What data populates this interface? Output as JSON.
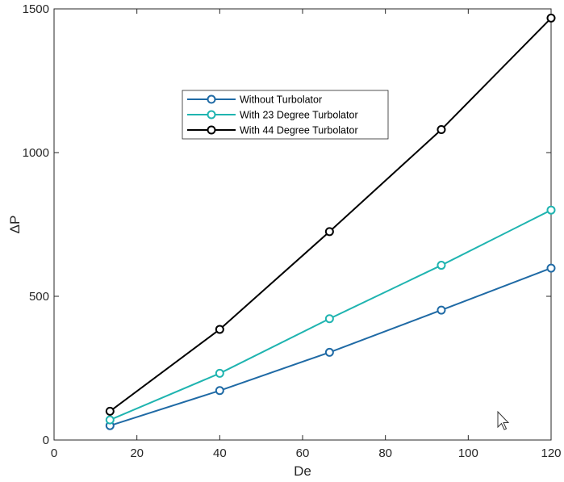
{
  "chart_data": {
    "type": "line",
    "xlabel": "De",
    "ylabel": "ΔP",
    "xlim": [
      0,
      120
    ],
    "ylim": [
      0,
      1500
    ],
    "xticks": [
      0,
      20,
      40,
      60,
      80,
      100,
      120
    ],
    "yticks": [
      0,
      500,
      1000,
      1500
    ],
    "grid": false,
    "legend_position": "upper-center",
    "series": [
      {
        "name": "Without Turbolator",
        "color": "#1f6aa5",
        "x": [
          13.5,
          40,
          66.5,
          93.5,
          120
        ],
        "y": [
          50,
          172,
          305,
          452,
          598
        ]
      },
      {
        "name": "With 23 Degree Turbolator",
        "color": "#1fb4b0",
        "x": [
          13.5,
          40,
          66.5,
          93.5,
          120
        ],
        "y": [
          70,
          232,
          422,
          608,
          800
        ]
      },
      {
        "name": "With 44 Degree Turbolator",
        "color": "#000000",
        "x": [
          13.5,
          40,
          66.5,
          93.5,
          120
        ],
        "y": [
          100,
          385,
          725,
          1080,
          1468
        ]
      }
    ]
  },
  "cursor": {
    "icon": "mouse-pointer-icon"
  }
}
